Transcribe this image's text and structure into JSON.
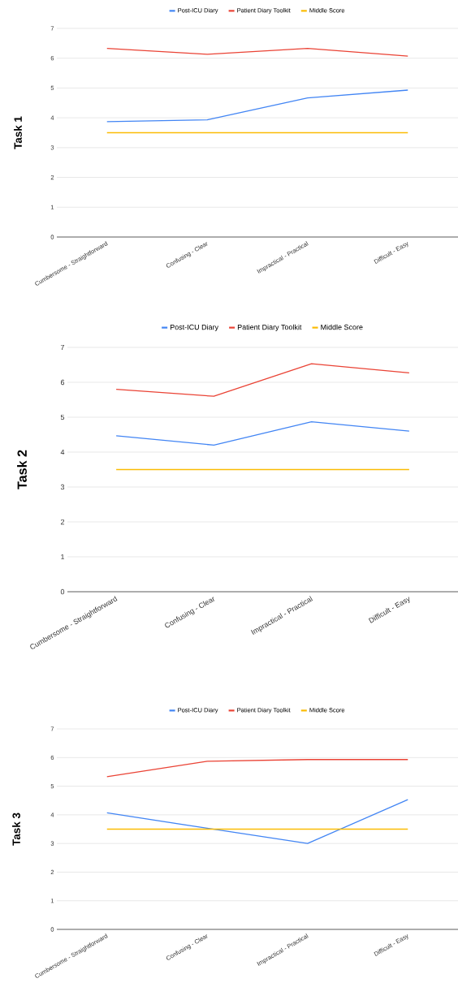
{
  "chart_data": [
    {
      "type": "line",
      "ylabel": "Task 1",
      "categories": [
        "Cumbersome - Straightforward",
        "Confusing - Clear",
        "Impractical - Practical",
        "Difficult - Easy"
      ],
      "ylim": [
        0,
        7
      ],
      "yticks": [
        0,
        1,
        2,
        3,
        4,
        5,
        6,
        7
      ],
      "grid": "y",
      "legend": "top",
      "marker": "none",
      "line_style": "solid",
      "series": [
        {
          "name": "Post-ICU Diary",
          "color": "#4285f4",
          "values": [
            3.87,
            3.93,
            4.67,
            4.93
          ]
        },
        {
          "name": "Patient Diary Toolkit",
          "color": "#ea4335",
          "values": [
            6.33,
            6.13,
            6.33,
            6.07
          ]
        },
        {
          "name": "Middle Score",
          "color": "#fbbc04",
          "values": [
            3.5,
            3.5,
            3.5,
            3.5
          ]
        }
      ]
    },
    {
      "type": "line",
      "ylabel": "Task 2",
      "categories": [
        "Cumbersome - Straightforward",
        "Confusing - Clear",
        "Impractical - Practical",
        "Difficult - Easy"
      ],
      "ylim": [
        0,
        7
      ],
      "yticks": [
        0,
        1,
        2,
        3,
        4,
        5,
        6,
        7
      ],
      "grid": "y",
      "legend": "top",
      "marker": "none",
      "line_style": "solid",
      "series": [
        {
          "name": "Post-ICU Diary",
          "color": "#4285f4",
          "values": [
            4.47,
            4.2,
            4.87,
            4.6
          ]
        },
        {
          "name": "Patient Diary Toolkit",
          "color": "#ea4335",
          "values": [
            5.8,
            5.6,
            6.53,
            6.27
          ]
        },
        {
          "name": "Middle Score",
          "color": "#fbbc04",
          "values": [
            3.5,
            3.5,
            3.5,
            3.5
          ]
        }
      ]
    },
    {
      "type": "line",
      "ylabel": "Task 3",
      "categories": [
        "Cumbersome - Straightforward",
        "Confusing - Clear",
        "Impractical - Practical",
        "Difficult - Easy"
      ],
      "ylim": [
        0,
        7
      ],
      "yticks": [
        0,
        1,
        2,
        3,
        4,
        5,
        6,
        7
      ],
      "grid": "y",
      "legend": "top",
      "marker": "none",
      "line_style": "solid",
      "series": [
        {
          "name": "Post-ICU Diary",
          "color": "#4285f4",
          "values": [
            4.07,
            3.53,
            3.0,
            4.53
          ]
        },
        {
          "name": "Patient Diary Toolkit",
          "color": "#ea4335",
          "values": [
            5.33,
            5.87,
            5.93,
            5.93
          ]
        },
        {
          "name": "Middle Score",
          "color": "#fbbc04",
          "values": [
            3.5,
            3.5,
            3.5,
            3.5
          ]
        }
      ]
    }
  ]
}
